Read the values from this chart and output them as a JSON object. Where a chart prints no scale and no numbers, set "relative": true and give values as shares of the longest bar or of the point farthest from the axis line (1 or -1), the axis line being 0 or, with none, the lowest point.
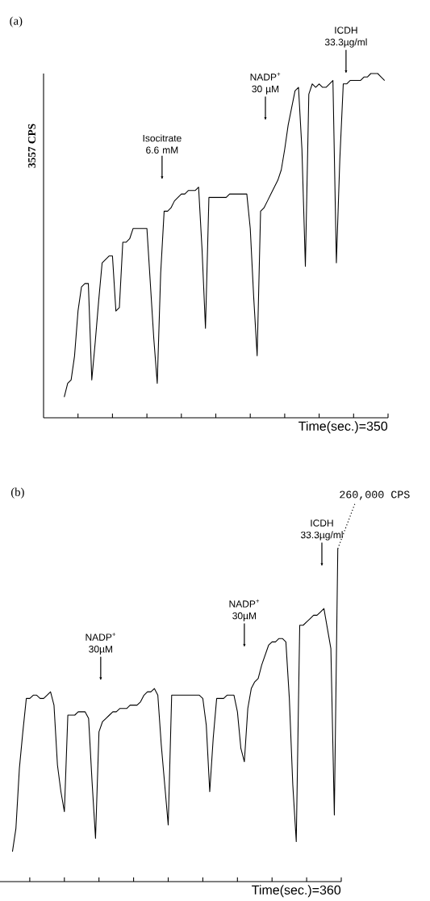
{
  "chart_data": [
    {
      "type": "line",
      "title": "(a)",
      "xlabel": "Time(sec.)=350",
      "ylabel": "3557 CPS",
      "relative": true,
      "categories": [
        null,
        null,
        null,
        null,
        null,
        null,
        null,
        null,
        null,
        null,
        null,
        null,
        null,
        null,
        null,
        null,
        null,
        null,
        null,
        null,
        null,
        null,
        null,
        null,
        null,
        null,
        null,
        null,
        null,
        null,
        null,
        null,
        null,
        null,
        null,
        null,
        null,
        null,
        null,
        null,
        null,
        null,
        null,
        null,
        null,
        null,
        null,
        null,
        null,
        null,
        null,
        null,
        null,
        null,
        null,
        null,
        null,
        null,
        null,
        null,
        null,
        null,
        null,
        null,
        null,
        null,
        null,
        null,
        null,
        null,
        null,
        null,
        null,
        null,
        null,
        null,
        null,
        null,
        null,
        null,
        null,
        null,
        null,
        null,
        null,
        null,
        null,
        null,
        null,
        null,
        null,
        null,
        null,
        null,
        null,
        null,
        null,
        null,
        null,
        null,
        null
      ],
      "series": [
        {
          "color": "#000000",
          "values": [
            null,
            null,
            null,
            null,
            null,
            null,
            0.06,
            0.1,
            0.11,
            0.18,
            0.31,
            0.38,
            0.39,
            0.39,
            0.11,
            0.22,
            0.34,
            0.45,
            0.46,
            0.47,
            0.47,
            0.31,
            0.32,
            0.51,
            0.51,
            0.52,
            0.55,
            0.55,
            0.55,
            0.55,
            0.55,
            0.39,
            0.23,
            0.1,
            0.42,
            0.6,
            0.6,
            0.61,
            0.63,
            0.64,
            0.65,
            0.65,
            0.66,
            0.66,
            0.66,
            0.67,
            0.49,
            0.26,
            0.64,
            0.64,
            0.64,
            0.64,
            0.64,
            0.64,
            0.65,
            0.65,
            0.65,
            0.65,
            0.65,
            0.65,
            0.55,
            0.35,
            0.18,
            0.6,
            0.61,
            0.63,
            0.65,
            0.67,
            0.69,
            0.72,
            0.78,
            0.85,
            0.9,
            0.95,
            0.96,
            0.78,
            0.44,
            0.94,
            0.97,
            0.96,
            0.97,
            0.96,
            0.96,
            0.97,
            0.98,
            0.45,
            0.75,
            0.97,
            0.97,
            0.98,
            0.98,
            0.98,
            0.98,
            0.99,
            0.99,
            1.0,
            1.0,
            1.0,
            0.99,
            0.98,
            null
          ]
        }
      ],
      "annotations": [
        "Isocitrate 6.6 mM",
        "NADP$^{+}$ 30 µM",
        "ICDH 33.3µg/ml"
      ]
    },
    {
      "type": "line",
      "title": "(b)",
      "xlabel": "Time(sec.)=360",
      "relative": true,
      "categories": [
        null,
        null,
        null,
        null,
        null,
        null,
        null,
        null,
        null,
        null,
        null,
        null,
        null,
        null,
        null,
        null,
        null,
        null,
        null,
        null,
        null,
        null,
        null,
        null,
        null,
        null,
        null,
        null,
        null,
        null,
        null,
        null,
        null,
        null,
        null,
        null,
        null,
        null,
        null,
        null,
        null,
        null,
        null,
        null,
        null,
        null,
        null,
        null,
        null,
        null,
        null,
        null,
        null,
        null,
        null,
        null,
        null,
        null,
        null,
        null,
        null,
        null,
        null,
        null,
        null,
        null,
        null,
        null,
        null,
        null,
        null,
        null,
        null,
        null,
        null,
        null,
        null,
        null,
        null,
        null,
        null,
        null,
        null,
        null,
        null,
        null,
        null,
        null,
        null,
        null,
        null,
        null,
        null,
        null,
        null,
        null,
        null,
        null,
        null,
        null,
        null
      ],
      "series": [
        {
          "color": "#000000",
          "values": [
            null,
            null,
            null,
            null,
            null,
            0.09,
            0.16,
            0.34,
            0.45,
            0.55,
            0.55,
            0.56,
            0.56,
            0.55,
            0.55,
            0.56,
            0.57,
            0.53,
            0.35,
            0.27,
            0.21,
            0.5,
            0.5,
            0.5,
            0.51,
            0.51,
            0.51,
            0.49,
            0.3,
            0.13,
            0.45,
            0.48,
            0.49,
            0.5,
            0.51,
            0.51,
            0.52,
            0.52,
            0.52,
            0.53,
            0.53,
            0.53,
            0.54,
            0.56,
            0.57,
            0.57,
            0.58,
            0.56,
            0.41,
            0.29,
            0.17,
            0.56,
            0.56,
            0.56,
            0.56,
            0.56,
            0.56,
            0.56,
            0.56,
            0.56,
            0.55,
            0.47,
            0.27,
            0.43,
            0.55,
            0.55,
            0.55,
            0.56,
            0.56,
            0.56,
            0.51,
            0.4,
            0.36,
            0.52,
            0.58,
            0.6,
            0.61,
            0.65,
            0.68,
            0.71,
            0.72,
            0.72,
            0.73,
            0.73,
            0.72,
            0.55,
            0.29,
            0.12,
            0.77,
            0.77,
            0.78,
            0.79,
            0.8,
            0.8,
            0.81,
            0.82,
            0.76,
            0.7,
            0.2,
            1.0,
            null
          ]
        }
      ],
      "annotations": [
        "NADP$^{+}$ 30µM",
        "NADP$^{+}$ 30µM",
        "ICDH 33.3µg/ml",
        "260,000 CPS"
      ]
    }
  ]
}
